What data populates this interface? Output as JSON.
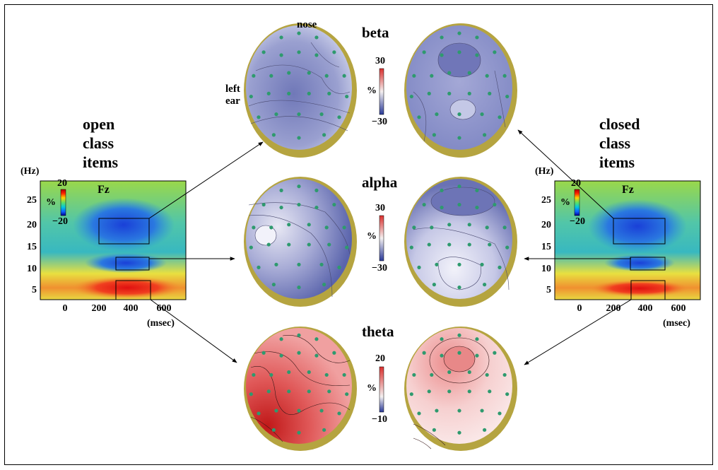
{
  "labels": {
    "nose": "nose",
    "left_ear": "left\near",
    "open_class": [
      "open",
      "class",
      "items"
    ],
    "closed_class": [
      "closed",
      "class",
      "items"
    ],
    "bands": [
      "beta",
      "alpha",
      "theta"
    ],
    "hz_unit": "(Hz)",
    "msec_unit": "(msec)",
    "electrode": "Fz"
  },
  "tf_plot": {
    "y_ticks": [
      "25",
      "20",
      "15",
      "10",
      "5"
    ],
    "x_ticks": [
      "0",
      "200",
      "400",
      "600"
    ],
    "colorbar": {
      "unit": "%",
      "max": "20",
      "min": "−20"
    }
  },
  "colorbars": [
    {
      "band": "beta",
      "unit": "%",
      "max": "30",
      "min": "−30"
    },
    {
      "band": "alpha",
      "unit": "%",
      "max": "30",
      "min": "−30"
    },
    {
      "band": "theta",
      "unit": "%",
      "max": "20",
      "min": "−10"
    }
  ],
  "colors": {
    "desync": "#5a64ac",
    "sync": "#e04848",
    "head_rim": "#b8a748",
    "electrode": "#2e9a6e"
  }
}
